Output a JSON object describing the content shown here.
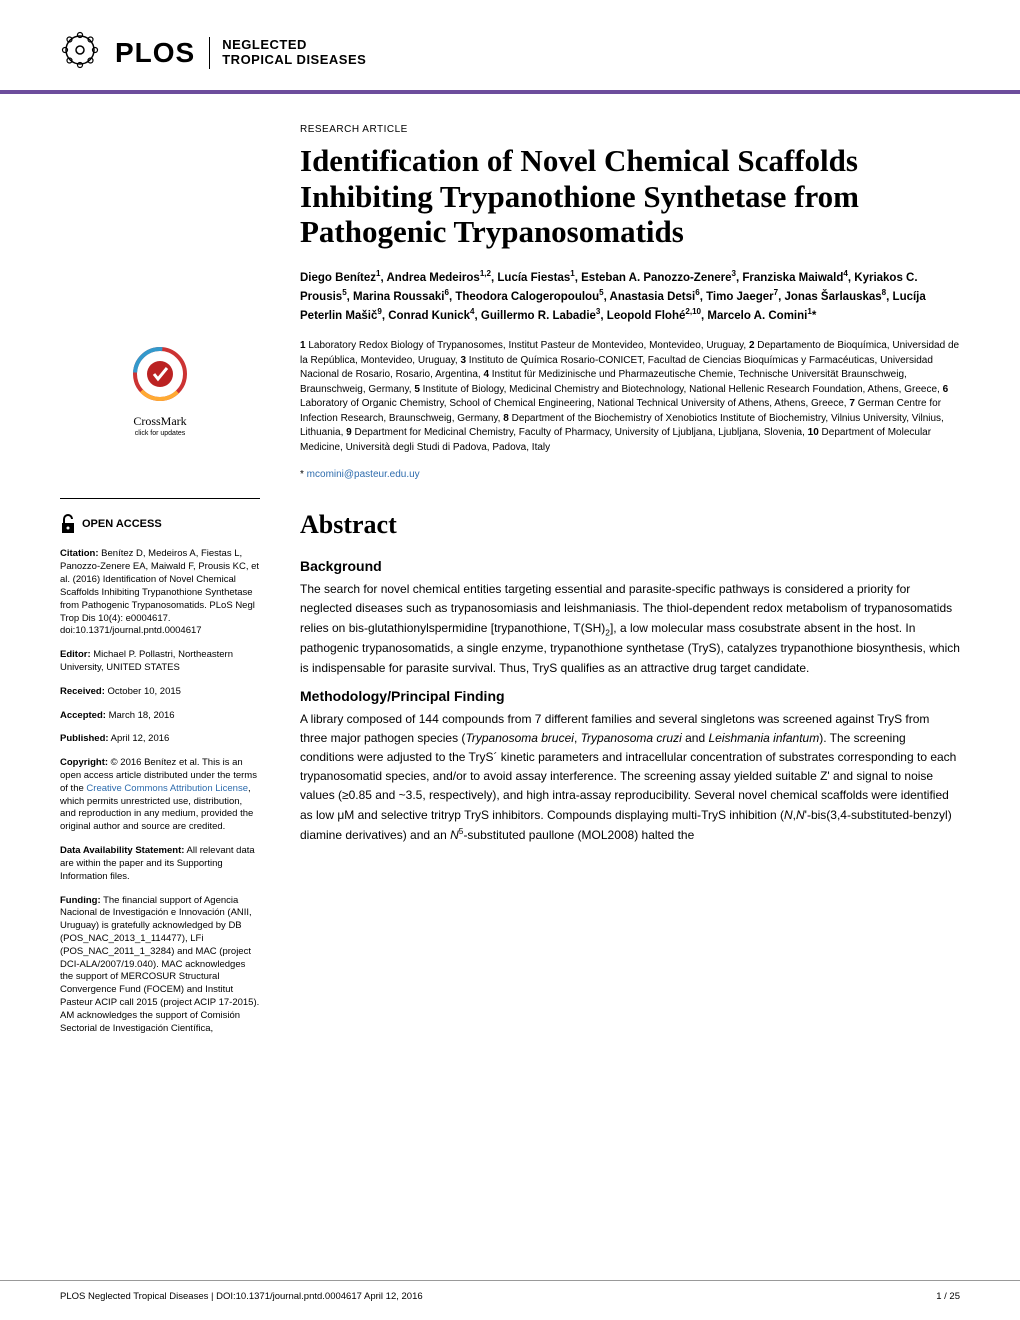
{
  "colors": {
    "accent": "#6d4d9c",
    "link": "#2e6cad",
    "text": "#000000",
    "bg": "#ffffff",
    "footer_border": "#999999"
  },
  "header": {
    "logo_main": "PLOS",
    "logo_sub_line1": "NEGLECTED",
    "logo_sub_line2": "TROPICAL DISEASES"
  },
  "crossmark": {
    "label": "CrossMark",
    "sub": "click for updates"
  },
  "open_access": {
    "label": "OPEN ACCESS"
  },
  "meta": {
    "citation_label": "Citation:",
    "citation_text": " Benítez D, Medeiros A, Fiestas L, Panozzo-Zenere EA, Maiwald F, Prousis KC, et al. (2016) Identification of Novel Chemical Scaffolds Inhibiting Trypanothione Synthetase from Pathogenic Trypanosomatids. PLoS Negl Trop Dis 10(4): e0004617. doi:10.1371/journal.pntd.0004617",
    "editor_label": "Editor:",
    "editor_text": " Michael P. Pollastri, Northeastern University, UNITED STATES",
    "received_label": "Received:",
    "received_text": " October 10, 2015",
    "accepted_label": "Accepted:",
    "accepted_text": " March 18, 2016",
    "published_label": "Published:",
    "published_text": " April 12, 2016",
    "copyright_label": "Copyright:",
    "copyright_text_pre": " © 2016 Benítez et al. This is an open access article distributed under the terms of the ",
    "copyright_link": "Creative Commons Attribution License",
    "copyright_text_post": ", which permits unrestricted use, distribution, and reproduction in any medium, provided the original author and source are credited.",
    "data_label": "Data Availability Statement:",
    "data_text": " All relevant data are within the paper and its Supporting Information files.",
    "funding_label": "Funding:",
    "funding_text": " The financial support of Agencia Nacional de Investigación e Innovación (ANII, Uruguay) is gratefully acknowledged by DB (POS_NAC_2013_1_114477), LFi (POS_NAC_2011_1_3284) and MAC (project DCI-ALA/2007/19.040). MAC acknowledges the support of MERCOSUR Structural Convergence Fund (FOCEM) and Institut Pasteur ACIP call 2015 (project ACIP 17-2015). AM acknowledges the support of Comisión Sectorial de Investigación Científica,"
  },
  "article": {
    "type": "RESEARCH ARTICLE",
    "title": "Identification of Novel Chemical Scaffolds Inhibiting Trypanothione Synthetase from Pathogenic Trypanosomatids",
    "authors_html": "Diego Benítez<sup>1</sup>, Andrea Medeiros<sup>1,2</sup>, Lucía Fiestas<sup>1</sup>, Esteban A. Panozzo-Zenere<sup>3</sup>, Franziska Maiwald<sup>4</sup>, Kyriakos C. Prousis<sup>5</sup>, Marina Roussaki<sup>6</sup>, Theodora Calogeropoulou<sup>5</sup>, Anastasia Detsi<sup>6</sup>, Timo Jaeger<sup>7</sup>, Jonas Šarlauskas<sup>8</sup>, Lucíja Peterlin Mašič<sup>9</sup>, Conrad Kunick<sup>4</sup>, Guillermo R. Labadie<sup>3</sup>, Leopold Flohé<sup>2,10</sup>, Marcelo A. Comini<sup>1</sup>*",
    "affiliations_html": "<span class='num'>1</span> Laboratory Redox Biology of Trypanosomes, Institut Pasteur de Montevideo, Montevideo, Uruguay, <span class='num'>2</span> Departamento de Bioquímica, Universidad de la República, Montevideo, Uruguay, <span class='num'>3</span> Instituto de Química Rosario-CONICET, Facultad de Ciencias Bioquímicas y Farmacéuticas, Universidad Nacional de Rosario, Rosario, Argentina, <span class='num'>4</span> Institut für Medizinische und Pharmazeutische Chemie, Technische Universität Braunschweig, Braunschweig, Germany, <span class='num'>5</span> Institute of Biology, Medicinal Chemistry and Biotechnology, National Hellenic Research Foundation, Athens, Greece, <span class='num'>6</span> Laboratory of Organic Chemistry, School of Chemical Engineering, National Technical University of Athens, Athens, Greece, <span class='num'>7</span> German Centre for Infection Research, Braunschweig, Germany, <span class='num'>8</span> Department of the Biochemistry of Xenobiotics Institute of Biochemistry, Vilnius University, Vilnius, Lithuania, <span class='num'>9</span> Department for Medicinal Chemistry, Faculty of Pharmacy, University of Ljubljana, Ljubljana, Slovenia, <span class='num'>10</span> Department of Molecular Medicine, Università degli Studi di Padova, Padova, Italy",
    "corresponding_prefix": "* ",
    "corresponding_email": "mcomini@pasteur.edu.uy",
    "abstract_heading": "Abstract",
    "background_heading": "Background",
    "background_html": "The search for novel chemical entities targeting essential and parasite-specific pathways is considered a priority for neglected diseases such as trypanosomiasis and leishmaniasis. The thiol-dependent redox metabolism of trypanosomatids relies on bis-glutathionylspermidine [trypanothione, T(SH)<sub>2</sub>], a low molecular mass cosubstrate absent in the host. In pathogenic trypanosomatids, a single enzyme, trypanothione synthetase (TryS), catalyzes trypanothione biosynthesis, which is indispensable for parasite survival. Thus, TryS qualifies as an attractive drug target candidate.",
    "methodology_heading": "Methodology/Principal Finding",
    "methodology_html": "A library composed of 144 compounds from 7 different families and several singletons was screened against TryS from three major pathogen species (<i>Trypanosoma brucei</i>, <i>Trypanosoma cruzi</i> and <i>Leishmania infantum</i>). The screening conditions were adjusted to the TryS´ kinetic parameters and intracellular concentration of substrates corresponding to each trypanosomatid species, and/or to avoid assay interference. The screening assay yielded suitable Z' and signal to noise values (≥0.85 and ~3.5, respectively), and high intra-assay reproducibility. Several novel chemical scaffolds were identified as low μM and selective tritryp TryS inhibitors. Compounds displaying multi-TryS inhibition (<i>N</i>,<i>N</i>'-bis(3,4-substituted-benzyl) diamine derivatives) and an <i>N</i><sup>5</sup>-substituted paullone (MOL2008) halted the"
  },
  "footer": {
    "left": "PLOS Neglected Tropical Diseases | DOI:10.1371/journal.pntd.0004617   April 12, 2016",
    "right": "1 / 25"
  }
}
